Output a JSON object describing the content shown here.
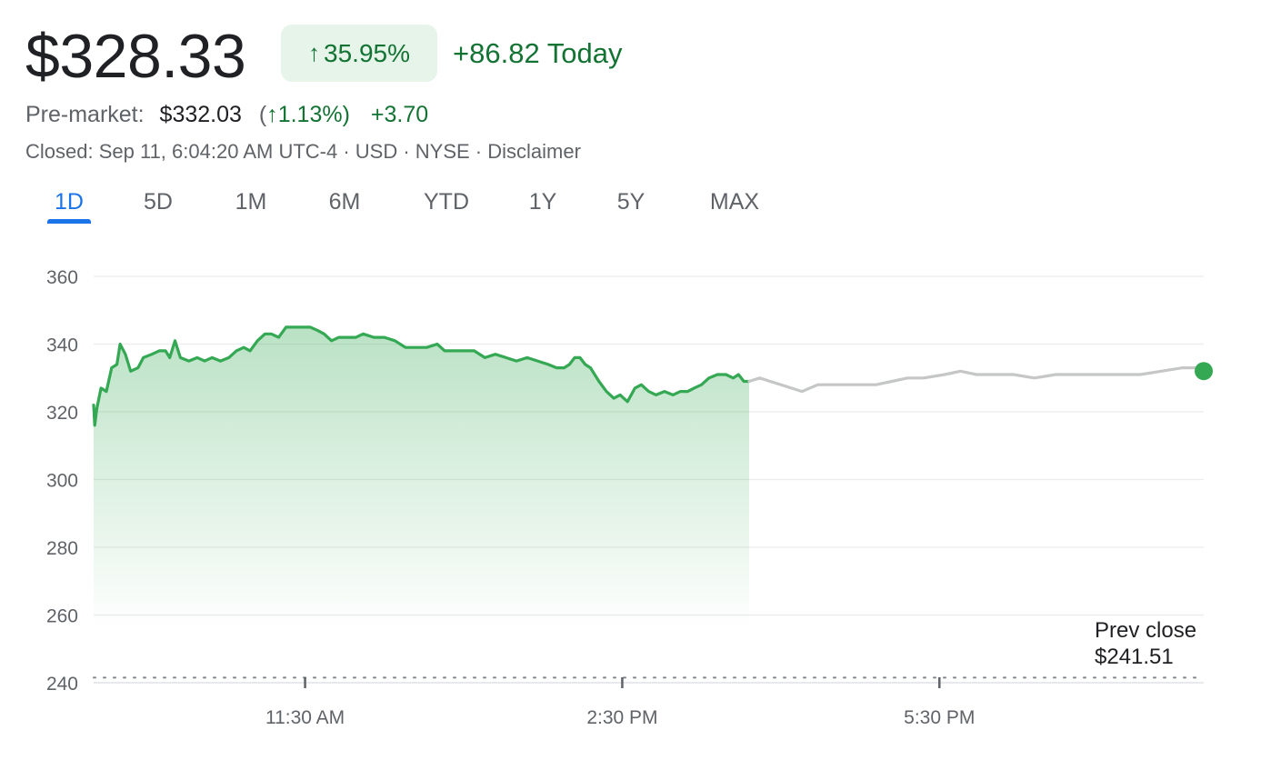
{
  "quote": {
    "price": "$328.33",
    "change_pct_arrow": "↑",
    "change_pct": "35.95%",
    "change_today": "+86.82 Today",
    "premarket_label": "Pre-market:",
    "premarket_price": "$332.03",
    "premarket_paren_open": "(",
    "premarket_arrow": "↑",
    "premarket_pct": "1.13%)",
    "premarket_change": "+3.70",
    "meta": "Closed: Sep 11, 6:04:20 AM UTC-4 · USD · NYSE · Disclaimer",
    "positive_color": "#137333",
    "accent_color": "#1a73e8"
  },
  "tabs": [
    {
      "label": "1D",
      "active": true
    },
    {
      "label": "5D",
      "active": false
    },
    {
      "label": "1M",
      "active": false
    },
    {
      "label": "6M",
      "active": false
    },
    {
      "label": "YTD",
      "active": false
    },
    {
      "label": "1Y",
      "active": false
    },
    {
      "label": "5Y",
      "active": false
    },
    {
      "label": "MAX",
      "active": false
    }
  ],
  "prev_close": {
    "label": "Prev close",
    "value": "$241.51"
  },
  "chart_data": {
    "type": "line",
    "title": "",
    "xlabel": "",
    "ylabel": "",
    "ylim": [
      240,
      360
    ],
    "yticks": [
      360,
      340,
      320,
      300,
      280,
      260,
      240
    ],
    "xticks": [
      {
        "label": "11:30 AM",
        "t": 11.5
      },
      {
        "label": "2:30 PM",
        "t": 14.5
      },
      {
        "label": "5:30 PM",
        "t": 17.5
      }
    ],
    "x_range_hours": [
      9.5,
      20.0
    ],
    "grid": true,
    "reference_line": {
      "label": "Prev close",
      "value": 241.51
    },
    "series": [
      {
        "segment": "regular",
        "color": "#34a853",
        "fill": true,
        "points": [
          [
            9.5,
            322
          ],
          [
            9.51,
            316
          ],
          [
            9.53,
            321
          ],
          [
            9.57,
            327
          ],
          [
            9.62,
            326
          ],
          [
            9.67,
            333
          ],
          [
            9.72,
            334
          ],
          [
            9.75,
            340
          ],
          [
            9.8,
            337
          ],
          [
            9.85,
            332
          ],
          [
            9.92,
            333
          ],
          [
            9.97,
            336
          ],
          [
            10.05,
            337
          ],
          [
            10.12,
            338
          ],
          [
            10.18,
            338
          ],
          [
            10.22,
            336
          ],
          [
            10.27,
            341
          ],
          [
            10.32,
            336
          ],
          [
            10.4,
            335
          ],
          [
            10.48,
            336
          ],
          [
            10.55,
            335
          ],
          [
            10.62,
            336
          ],
          [
            10.7,
            335
          ],
          [
            10.78,
            336
          ],
          [
            10.85,
            338
          ],
          [
            10.92,
            339
          ],
          [
            10.98,
            338
          ],
          [
            11.05,
            341
          ],
          [
            11.12,
            343
          ],
          [
            11.18,
            343
          ],
          [
            11.25,
            342
          ],
          [
            11.32,
            345
          ],
          [
            11.4,
            345
          ],
          [
            11.48,
            345
          ],
          [
            11.55,
            345
          ],
          [
            11.62,
            344
          ],
          [
            11.68,
            343
          ],
          [
            11.75,
            341
          ],
          [
            11.82,
            342
          ],
          [
            11.9,
            342
          ],
          [
            11.98,
            342
          ],
          [
            12.05,
            343
          ],
          [
            12.15,
            342
          ],
          [
            12.25,
            342
          ],
          [
            12.35,
            341
          ],
          [
            12.45,
            339
          ],
          [
            12.55,
            339
          ],
          [
            12.65,
            339
          ],
          [
            12.75,
            340
          ],
          [
            12.82,
            338
          ],
          [
            12.9,
            338
          ],
          [
            13.0,
            338
          ],
          [
            13.1,
            338
          ],
          [
            13.2,
            336
          ],
          [
            13.3,
            337
          ],
          [
            13.4,
            336
          ],
          [
            13.5,
            335
          ],
          [
            13.6,
            336
          ],
          [
            13.7,
            335
          ],
          [
            13.8,
            334
          ],
          [
            13.88,
            333
          ],
          [
            13.95,
            333
          ],
          [
            14.0,
            334
          ],
          [
            14.05,
            336
          ],
          [
            14.1,
            336
          ],
          [
            14.15,
            334
          ],
          [
            14.2,
            333
          ],
          [
            14.28,
            329
          ],
          [
            14.35,
            326
          ],
          [
            14.42,
            324
          ],
          [
            14.48,
            325
          ],
          [
            14.55,
            323
          ],
          [
            14.62,
            327
          ],
          [
            14.68,
            328
          ],
          [
            14.75,
            326
          ],
          [
            14.82,
            325
          ],
          [
            14.9,
            326
          ],
          [
            14.98,
            325
          ],
          [
            15.05,
            326
          ],
          [
            15.12,
            326
          ],
          [
            15.18,
            327
          ],
          [
            15.25,
            328
          ],
          [
            15.32,
            330
          ],
          [
            15.4,
            331
          ],
          [
            15.48,
            331
          ],
          [
            15.55,
            330
          ],
          [
            15.6,
            331
          ],
          [
            15.65,
            329
          ],
          [
            15.7,
            329
          ]
        ]
      },
      {
        "segment": "after-hours",
        "color": "#c4c7c5",
        "fill": false,
        "points": [
          [
            15.7,
            329
          ],
          [
            15.8,
            330
          ],
          [
            15.9,
            329
          ],
          [
            16.0,
            328
          ],
          [
            16.1,
            327
          ],
          [
            16.2,
            326
          ],
          [
            16.35,
            328
          ],
          [
            16.5,
            328
          ],
          [
            16.7,
            328
          ],
          [
            16.9,
            328
          ],
          [
            17.05,
            329
          ],
          [
            17.2,
            330
          ],
          [
            17.35,
            330
          ],
          [
            17.55,
            331
          ],
          [
            17.7,
            332
          ],
          [
            17.85,
            331
          ],
          [
            18.0,
            331
          ],
          [
            18.2,
            331
          ],
          [
            18.4,
            330
          ],
          [
            18.6,
            331
          ],
          [
            18.8,
            331
          ],
          [
            19.0,
            331
          ],
          [
            19.2,
            331
          ],
          [
            19.4,
            331
          ],
          [
            19.6,
            332
          ],
          [
            19.8,
            333
          ],
          [
            19.95,
            333
          ],
          [
            20.0,
            332
          ]
        ]
      }
    ],
    "end_marker": {
      "t": 20.0,
      "value": 332.03,
      "color": "#34a853"
    }
  }
}
